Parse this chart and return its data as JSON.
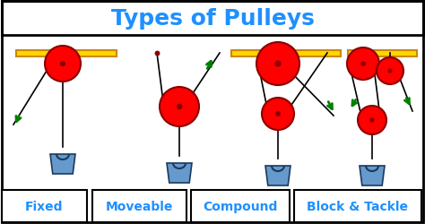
{
  "title": "Types of Pulleys",
  "title_color": "#1E90FF",
  "title_fontsize": 18,
  "background_color": "#FFFFFF",
  "border_color": "#000000",
  "bar_color": "#FFD700",
  "bar_edge": "#CC8800",
  "pulley_color": "#FF0000",
  "pulley_edge": "#8B0000",
  "bucket_fill": "#6699CC",
  "bucket_edge": "#1A3A5C",
  "rope_color": "#000000",
  "arrow_color": "#008000",
  "label_color": "#1E90FF",
  "label_fontsize": 10,
  "labels": [
    "Fixed",
    "Moveable",
    "Compound",
    "Block & Tackle"
  ]
}
